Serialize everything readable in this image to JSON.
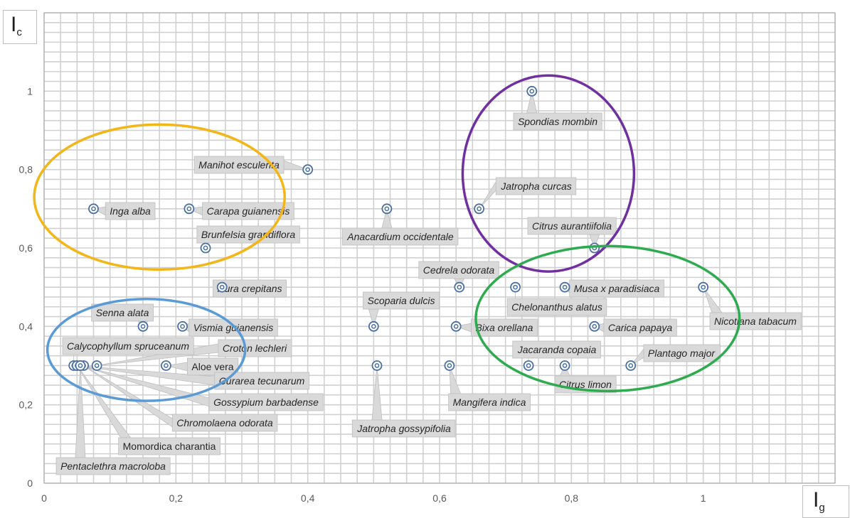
{
  "chart_data": {
    "type": "scatter",
    "title": "",
    "xlabel": "I",
    "xlabel_sub": "g",
    "ylabel": "I",
    "ylabel_sub": "c",
    "xlim": [
      0,
      1.2
    ],
    "ylim": [
      0,
      1.2
    ],
    "x_ticks": [
      "0",
      "0,2",
      "0,4",
      "0,6",
      "0,8",
      "1"
    ],
    "y_ticks": [
      "0",
      "0,2",
      "0,4",
      "0,6",
      "0,8",
      "1"
    ],
    "grid": true,
    "marker_color": "#4a6fa1",
    "points": [
      {
        "name": "Spondias mombin",
        "x": 0.74,
        "y": 1.0,
        "italic": true
      },
      {
        "name": "Manihot esculenta",
        "x": 0.4,
        "y": 0.8,
        "italic": true
      },
      {
        "name": "Inga alba",
        "x": 0.075,
        "y": 0.7,
        "italic": true
      },
      {
        "name": "Carapa guianensis",
        "x": 0.22,
        "y": 0.7,
        "italic": true
      },
      {
        "name": "Anacardium occidentale",
        "x": 0.52,
        "y": 0.7,
        "italic": true
      },
      {
        "name": "Jatropha curcas",
        "x": 0.66,
        "y": 0.7,
        "italic": true
      },
      {
        "name": "Brunfelsia grandiflora",
        "x": 0.245,
        "y": 0.6,
        "italic": true
      },
      {
        "name": "Citrus aurantiifolia",
        "x": 0.835,
        "y": 0.6,
        "italic": true
      },
      {
        "name": "Hura crepitans",
        "x": 0.27,
        "y": 0.5,
        "italic": true
      },
      {
        "name": "Cedrela odorata",
        "x": 0.63,
        "y": 0.5,
        "italic": true
      },
      {
        "name": "Chelonanthus alatus",
        "x": 0.715,
        "y": 0.5,
        "italic": true
      },
      {
        "name": "Musa x paradisiaca",
        "x": 0.79,
        "y": 0.5,
        "italic": true
      },
      {
        "name": "Nicotiana tabacum",
        "x": 1.0,
        "y": 0.5,
        "italic": true
      },
      {
        "name": "Senna alata",
        "x": 0.15,
        "y": 0.4,
        "italic": true
      },
      {
        "name": "Vismia guianensis",
        "x": 0.21,
        "y": 0.4,
        "italic": true
      },
      {
        "name": "Scoparia dulcis",
        "x": 0.5,
        "y": 0.4,
        "italic": true
      },
      {
        "name": "Bixa orellana",
        "x": 0.625,
        "y": 0.4,
        "italic": true
      },
      {
        "name": "Carica papaya",
        "x": 0.835,
        "y": 0.4,
        "italic": true
      },
      {
        "name": "Calycophyllum spruceanum",
        "x": 0.045,
        "y": 0.3,
        "italic": true
      },
      {
        "name": "Croton lechleri",
        "x": 0.08,
        "y": 0.3,
        "italic": true
      },
      {
        "name": "Aloe vera",
        "x": 0.185,
        "y": 0.3,
        "italic": false
      },
      {
        "name": "Curarea tecunarum",
        "x": 0.05,
        "y": 0.3,
        "italic": true
      },
      {
        "name": "Gossypium barbadense",
        "x": 0.055,
        "y": 0.3,
        "italic": true
      },
      {
        "name": "Chromolaena odorata",
        "x": 0.06,
        "y": 0.3,
        "italic": true
      },
      {
        "name": "Momordica charantia",
        "x": 0.05,
        "y": 0.3,
        "italic": false
      },
      {
        "name": "Pentaclethra macroloba",
        "x": 0.055,
        "y": 0.3,
        "italic": true
      },
      {
        "name": "Jatropha gossypifolia",
        "x": 0.505,
        "y": 0.3,
        "italic": true
      },
      {
        "name": "Mangifera indica",
        "x": 0.615,
        "y": 0.3,
        "italic": true
      },
      {
        "name": "Jacaranda copaia",
        "x": 0.735,
        "y": 0.3,
        "italic": true
      },
      {
        "name": "Citrus limon",
        "x": 0.79,
        "y": 0.3,
        "italic": true
      },
      {
        "name": "Plantago major",
        "x": 0.89,
        "y": 0.3,
        "italic": true
      }
    ],
    "groups": [
      {
        "color": "#f2b619",
        "cx": 0.175,
        "cy": 0.73,
        "rx": 0.19,
        "ry": 0.185
      },
      {
        "color": "#7030a0",
        "cx": 0.765,
        "cy": 0.79,
        "rx": 0.13,
        "ry": 0.25
      },
      {
        "color": "#2eab4f",
        "cx": 0.855,
        "cy": 0.42,
        "rx": 0.2,
        "ry": 0.185
      },
      {
        "color": "#5b9bd5",
        "cx": 0.155,
        "cy": 0.34,
        "rx": 0.15,
        "ry": 0.13
      }
    ]
  }
}
